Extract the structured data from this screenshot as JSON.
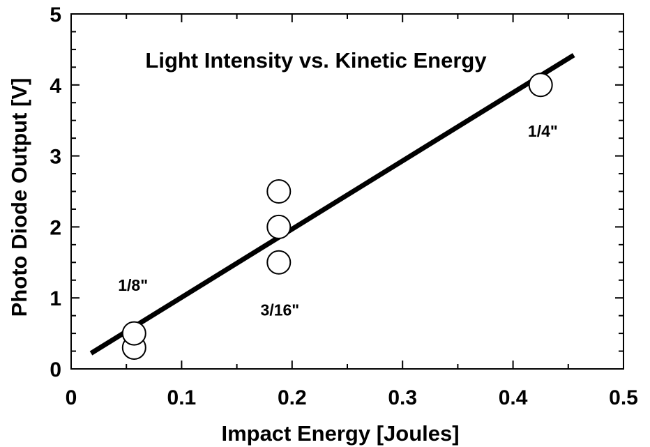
{
  "chart_data": {
    "type": "scatter",
    "title": "Light Intensity vs. Kinetic Energy",
    "xlabel": "Impact Energy [Joules]",
    "ylabel": "Photo Diode Output [V]",
    "xlim": [
      0,
      0.5
    ],
    "ylim": [
      0,
      5
    ],
    "x_ticks": [
      "0",
      "0.1",
      "0.2",
      "0.3",
      "0.4",
      "0.5"
    ],
    "y_ticks": [
      "0",
      "1",
      "2",
      "3",
      "4",
      "5"
    ],
    "grid": false,
    "points": [
      {
        "x": 0.057,
        "y": 0.3
      },
      {
        "x": 0.057,
        "y": 0.5
      },
      {
        "x": 0.188,
        "y": 1.5
      },
      {
        "x": 0.188,
        "y": 2.0
      },
      {
        "x": 0.188,
        "y": 2.5
      },
      {
        "x": 0.425,
        "y": 4.0
      }
    ],
    "fit_line": [
      {
        "x": 0.018,
        "y": 0.22
      },
      {
        "x": 0.455,
        "y": 4.42
      }
    ],
    "annotations": [
      {
        "text": "1/8\"",
        "x": 0.056,
        "y": 1.1
      },
      {
        "text": "3/16\"",
        "x": 0.189,
        "y": 0.75
      },
      {
        "text": "1/4\"",
        "x": 0.427,
        "y": 3.27
      }
    ]
  }
}
